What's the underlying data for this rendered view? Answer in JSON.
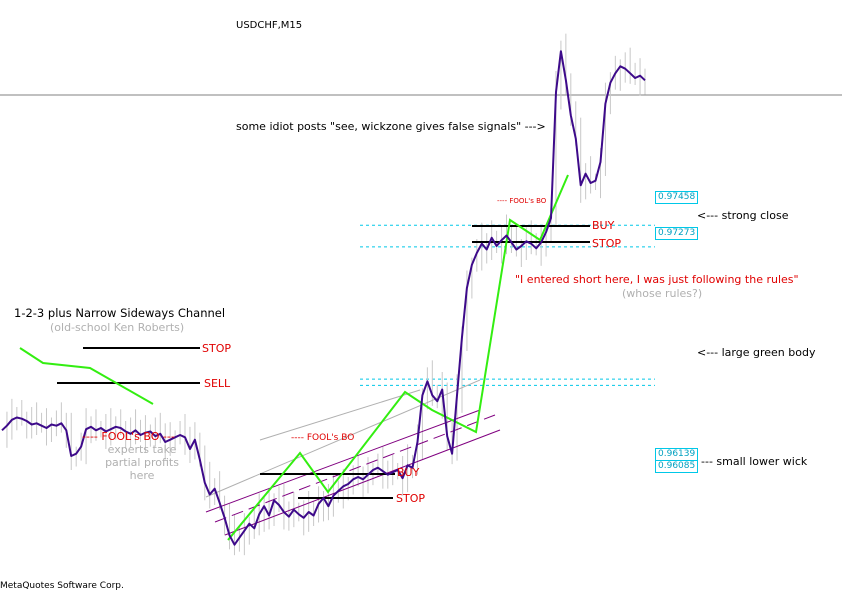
{
  "chart_data": {
    "type": "line",
    "title": "USDCHF,M15",
    "footer": "MetaQuotes Software Corp.",
    "series": [
      {
        "values": [
          0.957,
          0.9574,
          0.9579,
          0.9581,
          0.958,
          0.9578,
          0.9575,
          0.9576,
          0.9574,
          0.9572,
          0.9575,
          0.9574,
          0.9576,
          0.957,
          0.9548,
          0.955,
          0.9556,
          0.9571,
          0.9573,
          0.957,
          0.9572,
          0.9569,
          0.9571,
          0.9573,
          0.9572,
          0.9569,
          0.9567,
          0.957,
          0.9566,
          0.9568,
          0.9569,
          0.9565,
          0.9567,
          0.956,
          0.9562,
          0.9564,
          0.9566,
          0.9564,
          0.9554,
          0.9562,
          0.9545,
          0.9525,
          0.9515,
          0.952,
          0.9508,
          0.9495,
          0.948,
          0.9472,
          0.9478,
          0.9484,
          0.949,
          0.9486,
          0.9498,
          0.9505,
          0.9497,
          0.951,
          0.9506,
          0.95,
          0.9496,
          0.9502,
          0.9498,
          0.9495,
          0.95,
          0.9497,
          0.9507,
          0.9512,
          0.9505,
          0.9514,
          0.9518,
          0.9522,
          0.9524,
          0.9528,
          0.953,
          0.9528,
          0.9532,
          0.9536,
          0.9538,
          0.9535,
          0.9532,
          0.9534,
          0.9536,
          0.9529,
          0.954,
          0.9538,
          0.956,
          0.96,
          0.9612,
          0.96,
          0.9595,
          0.9605,
          0.9565,
          0.955,
          0.96,
          0.965,
          0.9692,
          0.9712,
          0.9722,
          0.973,
          0.9725,
          0.9735,
          0.9728,
          0.9733,
          0.9737,
          0.9731,
          0.9725,
          0.9728,
          0.9732,
          0.973,
          0.9726,
          0.9731,
          0.974,
          0.9752,
          0.986,
          0.9895,
          0.987,
          0.984,
          0.982,
          0.978,
          0.979,
          0.9782,
          0.9784,
          0.98,
          0.985,
          0.9868,
          0.9876,
          0.9882,
          0.988,
          0.9876,
          0.9872,
          0.9874,
          0.987
        ]
      }
    ],
    "ylim": [
      0.944,
      0.992
    ],
    "levels": [
      0.97458,
      0.97273,
      0.96139,
      0.96085
    ],
    "level_labels": [
      "0.97458",
      "0.97273",
      "0.96139",
      "0.96085"
    ]
  },
  "annotations": {
    "title_123": "1-2-3 plus Narrow Sideways Channel",
    "subtitle_123": "(old-school Ken Roberts)",
    "stop_1": "STOP",
    "sell": "SELL",
    "fools_bo_1": "---- FOOL's BO ---",
    "experts_1": "experts take",
    "experts_2": "partial profits",
    "experts_3": "here",
    "fools_bo_2": "---- FOOL's BO",
    "buy_2": "BUY",
    "stop_2": "STOP",
    "fools_bo_3": "---- FOOL's BO",
    "buy_3": "BUY",
    "stop_3": "STOP",
    "idiot": "some idiot posts \"see, wickzone gives false signals\" --->",
    "entered_short": "\"I entered short here, I was just following the rules\"",
    "whose_rules": "(whose rules?)",
    "strong_close": "<--- strong close",
    "large_green": "<--- large green body",
    "small_wick": "--- small lower wick"
  },
  "colors": {
    "price": "#3d0a8a",
    "green": "#33ee11",
    "level": "#00c8e8",
    "channel": "#800080",
    "trend": "#b0b0b0",
    "wick": "#c8c8c8"
  }
}
